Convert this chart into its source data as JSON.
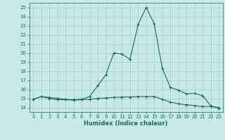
{
  "title": "",
  "xlabel": "Humidex (Indice chaleur)",
  "bg_color": "#c8eae6",
  "grid_color": "#a0ccc8",
  "line_color": "#1a6b5a",
  "xlim": [
    -0.5,
    23.5
  ],
  "ylim": [
    13.5,
    25.5
  ],
  "xticks": [
    0,
    1,
    2,
    3,
    4,
    5,
    6,
    7,
    8,
    9,
    10,
    11,
    12,
    13,
    14,
    15,
    16,
    17,
    18,
    19,
    20,
    21,
    22,
    23
  ],
  "yticks": [
    14,
    15,
    16,
    17,
    18,
    19,
    20,
    21,
    22,
    23,
    24,
    25
  ],
  "line1_x": [
    0,
    1,
    2,
    3,
    4,
    5,
    6,
    7,
    8,
    9,
    10,
    11,
    12,
    13,
    14,
    15,
    16,
    17,
    18,
    19,
    20,
    21,
    22,
    23
  ],
  "line1_y": [
    14.9,
    15.2,
    15.1,
    15.0,
    14.9,
    14.85,
    14.9,
    15.2,
    16.4,
    17.6,
    20.0,
    19.85,
    19.3,
    23.1,
    25.0,
    23.2,
    18.3,
    16.2,
    15.9,
    15.5,
    15.55,
    15.3,
    14.2,
    13.9
  ],
  "line2_x": [
    0,
    1,
    2,
    3,
    4,
    5,
    6,
    7,
    8,
    9,
    10,
    11,
    12,
    13,
    14,
    15,
    16,
    17,
    18,
    19,
    20,
    21,
    22,
    23
  ],
  "line2_y": [
    14.9,
    15.2,
    15.0,
    14.85,
    14.85,
    14.8,
    14.85,
    14.9,
    15.0,
    15.05,
    15.1,
    15.15,
    15.15,
    15.2,
    15.2,
    15.2,
    14.9,
    14.6,
    14.4,
    14.3,
    14.2,
    14.1,
    14.1,
    14.0
  ],
  "xlabel_fontsize": 6.0,
  "tick_fontsize": 5.0
}
